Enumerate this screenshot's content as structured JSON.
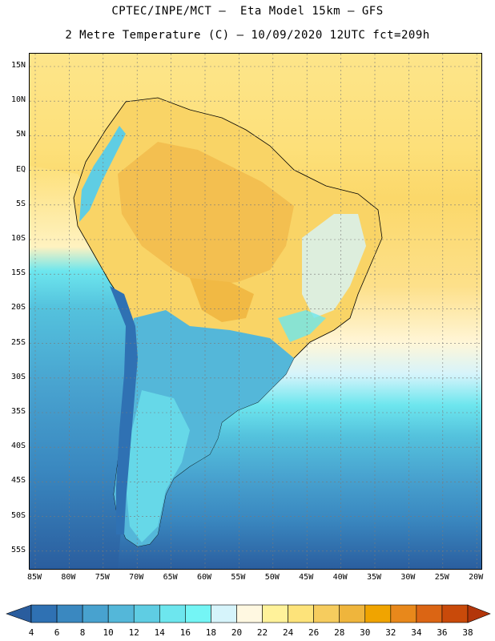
{
  "title": {
    "line1": "CPTEC/INPE/MCT –  Eta Model 15km – GFS",
    "line2": "2 Metre Temperature (C) – 10/09/2020 12UTC fct=209h"
  },
  "map": {
    "lat_labels": [
      "15N",
      "10N",
      "5N",
      "EQ",
      "5S",
      "10S",
      "15S",
      "20S",
      "25S",
      "30S",
      "35S",
      "40S",
      "45S",
      "50S",
      "55S"
    ],
    "lon_labels": [
      "85W",
      "80W",
      "75W",
      "70W",
      "65W",
      "60W",
      "55W",
      "50W",
      "45W",
      "40W",
      "35W",
      "30W",
      "25W",
      "20W"
    ]
  },
  "legend": {
    "tick_labels": [
      "4",
      "6",
      "8",
      "10",
      "12",
      "14",
      "16",
      "18",
      "20",
      "22",
      "24",
      "26",
      "28",
      "30",
      "32",
      "34",
      "36",
      "38"
    ],
    "colors": [
      "#2a5d9e",
      "#2f71b3",
      "#3a88c0",
      "#48a2cf",
      "#54b7d9",
      "#5fcde3",
      "#6de6ee",
      "#74f5f5",
      "#d6f4fb",
      "#fff8e1",
      "#fff29a",
      "#fde37a",
      "#f6cc5e",
      "#efb53c",
      "#f0a400",
      "#e8881b",
      "#db6514",
      "#c94a0a",
      "#b3360a"
    ]
  }
}
